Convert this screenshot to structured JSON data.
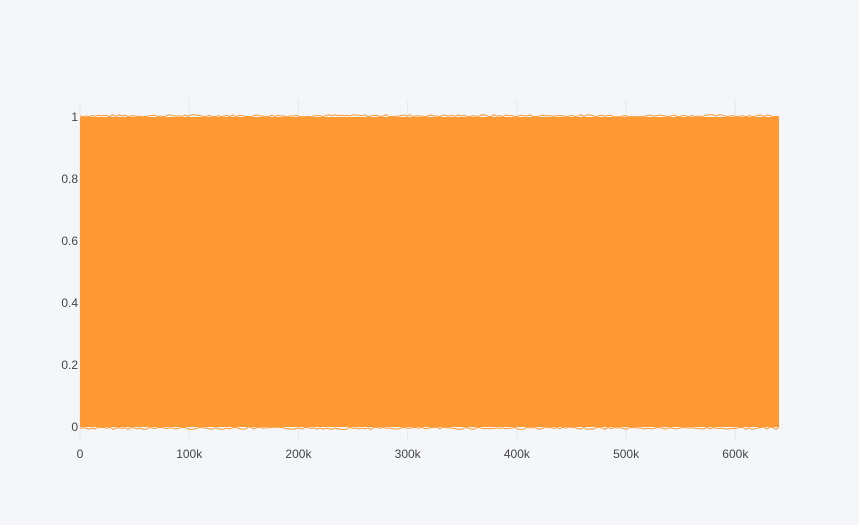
{
  "chart_data": {
    "type": "line",
    "title": "",
    "xlabel": "",
    "ylabel": "",
    "xlim": [
      0,
      640000
    ],
    "ylim": [
      0,
      1
    ],
    "grid": true,
    "legend": "none",
    "x_ticks": [
      {
        "value": 0,
        "label": "0"
      },
      {
        "value": 100000,
        "label": "100k"
      },
      {
        "value": 200000,
        "label": "200k"
      },
      {
        "value": 300000,
        "label": "300k"
      },
      {
        "value": 400000,
        "label": "400k"
      },
      {
        "value": 500000,
        "label": "500k"
      },
      {
        "value": 600000,
        "label": "600k"
      }
    ],
    "y_ticks": [
      {
        "value": 0,
        "label": "0"
      },
      {
        "value": 0.2,
        "label": "0.2"
      },
      {
        "value": 0.4,
        "label": "0.4"
      },
      {
        "value": 0.6,
        "label": "0.6"
      },
      {
        "value": 0.8,
        "label": "0.8"
      },
      {
        "value": 1,
        "label": "1"
      }
    ],
    "series": [
      {
        "color": "#ff9933",
        "x_range": [
          0,
          640000
        ],
        "y_range": [
          0,
          1
        ],
        "description_of_values": "dense random values in [0,1] across the full x-range"
      }
    ]
  }
}
